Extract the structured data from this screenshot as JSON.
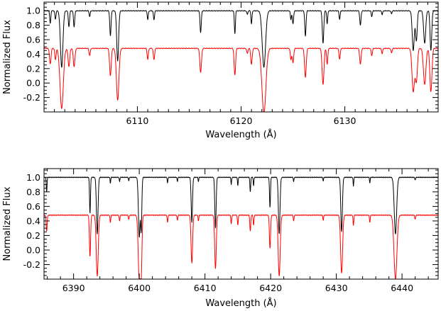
{
  "chart_data": [
    {
      "type": "line",
      "xlabel": "Wavelength (Å)",
      "ylabel": "Normalized Flux",
      "xlim": [
        6101.0,
        6139.0
      ],
      "ylim": [
        -0.4,
        1.12
      ],
      "x_ticks": [
        6110,
        6120,
        6130
      ],
      "y_ticks": [
        -0.2,
        0.0,
        0.2,
        0.4,
        0.6,
        0.8,
        1.0
      ],
      "grid": false,
      "series": [
        {
          "color": "#000000",
          "continuum": 1.0,
          "lines": [
            [
              6101.6,
              0.18,
              0.05
            ],
            [
              6102.1,
              0.12,
              0.05
            ],
            [
              6102.7,
              0.78,
              0.12
            ],
            [
              6103.4,
              0.22,
              0.06
            ],
            [
              6103.9,
              0.22,
              0.06
            ],
            [
              6105.4,
              0.08,
              0.05
            ],
            [
              6107.4,
              0.35,
              0.06
            ],
            [
              6108.1,
              0.7,
              0.09
            ],
            [
              6111.0,
              0.12,
              0.05
            ],
            [
              6111.6,
              0.13,
              0.05
            ],
            [
              6116.1,
              0.3,
              0.06
            ],
            [
              6119.4,
              0.32,
              0.05
            ],
            [
              6120.6,
              0.05,
              0.05
            ],
            [
              6121.0,
              0.18,
              0.05
            ],
            [
              6122.2,
              0.78,
              0.16
            ],
            [
              6124.8,
              0.12,
              0.05
            ],
            [
              6125.0,
              0.18,
              0.06
            ],
            [
              6126.2,
              0.35,
              0.06
            ],
            [
              6127.9,
              0.45,
              0.07
            ],
            [
              6128.3,
              0.18,
              0.05
            ],
            [
              6129.5,
              0.12,
              0.05
            ],
            [
              6131.5,
              0.2,
              0.06
            ],
            [
              6132.6,
              0.08,
              0.05
            ],
            [
              6133.6,
              0.05,
              0.05
            ],
            [
              6134.5,
              0.04,
              0.05
            ],
            [
              6136.6,
              0.55,
              0.1
            ],
            [
              6136.9,
              0.42,
              0.08
            ],
            [
              6137.7,
              0.45,
              0.1
            ],
            [
              6138.3,
              0.55,
              0.08
            ]
          ]
        },
        {
          "color": "#ff0000",
          "continuum": 0.48,
          "lines": [
            [
              6101.6,
              0.22,
              0.07
            ],
            [
              6102.1,
              0.16,
              0.06
            ],
            [
              6102.7,
              0.83,
              0.16
            ],
            [
              6103.4,
              0.25,
              0.08
            ],
            [
              6103.9,
              0.25,
              0.08
            ],
            [
              6105.4,
              0.1,
              0.06
            ],
            [
              6107.4,
              0.38,
              0.08
            ],
            [
              6108.1,
              0.72,
              0.12
            ],
            [
              6111.0,
              0.15,
              0.06
            ],
            [
              6111.6,
              0.16,
              0.06
            ],
            [
              6116.1,
              0.33,
              0.08
            ],
            [
              6119.4,
              0.37,
              0.07
            ],
            [
              6120.6,
              0.07,
              0.06
            ],
            [
              6121.0,
              0.22,
              0.07
            ],
            [
              6122.2,
              0.9,
              0.19
            ],
            [
              6124.8,
              0.15,
              0.06
            ],
            [
              6125.0,
              0.2,
              0.07
            ],
            [
              6126.2,
              0.4,
              0.08
            ],
            [
              6127.9,
              0.5,
              0.09
            ],
            [
              6128.3,
              0.22,
              0.06
            ],
            [
              6129.5,
              0.15,
              0.06
            ],
            [
              6131.5,
              0.22,
              0.07
            ],
            [
              6132.6,
              0.1,
              0.06
            ],
            [
              6133.6,
              0.07,
              0.06
            ],
            [
              6134.5,
              0.06,
              0.06
            ],
            [
              6136.6,
              0.6,
              0.12
            ],
            [
              6136.9,
              0.45,
              0.1
            ],
            [
              6137.7,
              0.5,
              0.12
            ],
            [
              6138.3,
              0.6,
              0.1
            ]
          ]
        }
      ]
    },
    {
      "type": "line",
      "xlabel": "Wavelength (Å)",
      "ylabel": "Normalized Flux",
      "xlim": [
        6385.5,
        6445.5
      ],
      "ylim": [
        -0.4,
        1.12
      ],
      "x_ticks": [
        6390,
        6400,
        6410,
        6420,
        6430,
        6440
      ],
      "y_ticks": [
        -0.2,
        0.0,
        0.2,
        0.4,
        0.6,
        0.8,
        1.0
      ],
      "grid": false,
      "series": [
        {
          "color": "#000000",
          "continuum": 1.0,
          "lines": [
            [
              6385.9,
              0.2,
              0.06
            ],
            [
              6392.5,
              0.5,
              0.07
            ],
            [
              6393.6,
              0.78,
              0.12
            ],
            [
              6395.6,
              0.08,
              0.05
            ],
            [
              6397.0,
              0.06,
              0.05
            ],
            [
              6398.4,
              0.05,
              0.05
            ],
            [
              6400.0,
              0.82,
              0.13
            ],
            [
              6400.3,
              0.7,
              0.09
            ],
            [
              6404.3,
              0.08,
              0.05
            ],
            [
              6405.8,
              0.06,
              0.05
            ],
            [
              6408.0,
              0.62,
              0.1
            ],
            [
              6409.0,
              0.06,
              0.05
            ],
            [
              6411.6,
              0.7,
              0.1
            ],
            [
              6414.0,
              0.1,
              0.05
            ],
            [
              6415.0,
              0.12,
              0.05
            ],
            [
              6416.9,
              0.2,
              0.06
            ],
            [
              6417.4,
              0.12,
              0.05
            ],
            [
              6419.9,
              0.42,
              0.07
            ],
            [
              6421.3,
              0.78,
              0.12
            ],
            [
              6423.5,
              0.06,
              0.05
            ],
            [
              6428.0,
              0.05,
              0.05
            ],
            [
              6430.8,
              0.75,
              0.12
            ],
            [
              6432.6,
              0.12,
              0.05
            ],
            [
              6435.1,
              0.08,
              0.05
            ],
            [
              6439.0,
              0.78,
              0.18
            ],
            [
              6442.0,
              0.04,
              0.05
            ]
          ]
        },
        {
          "color": "#ff0000",
          "continuum": 0.48,
          "lines": [
            [
              6385.9,
              0.22,
              0.08
            ],
            [
              6392.5,
              0.57,
              0.09
            ],
            [
              6393.6,
              0.84,
              0.15
            ],
            [
              6395.6,
              0.1,
              0.06
            ],
            [
              6397.0,
              0.08,
              0.06
            ],
            [
              6398.4,
              0.06,
              0.06
            ],
            [
              6400.0,
              0.9,
              0.16
            ],
            [
              6400.3,
              0.75,
              0.11
            ],
            [
              6404.3,
              0.1,
              0.06
            ],
            [
              6405.8,
              0.07,
              0.06
            ],
            [
              6408.0,
              0.66,
              0.12
            ],
            [
              6409.0,
              0.08,
              0.06
            ],
            [
              6411.6,
              0.74,
              0.12
            ],
            [
              6414.0,
              0.12,
              0.06
            ],
            [
              6415.0,
              0.14,
              0.06
            ],
            [
              6416.9,
              0.22,
              0.07
            ],
            [
              6417.4,
              0.14,
              0.06
            ],
            [
              6419.9,
              0.46,
              0.09
            ],
            [
              6421.3,
              0.84,
              0.15
            ],
            [
              6423.5,
              0.08,
              0.06
            ],
            [
              6428.0,
              0.07,
              0.06
            ],
            [
              6430.8,
              0.8,
              0.15
            ],
            [
              6432.6,
              0.14,
              0.06
            ],
            [
              6435.1,
              0.1,
              0.06
            ],
            [
              6439.0,
              0.88,
              0.22
            ],
            [
              6442.0,
              0.06,
              0.06
            ]
          ]
        }
      ]
    }
  ]
}
